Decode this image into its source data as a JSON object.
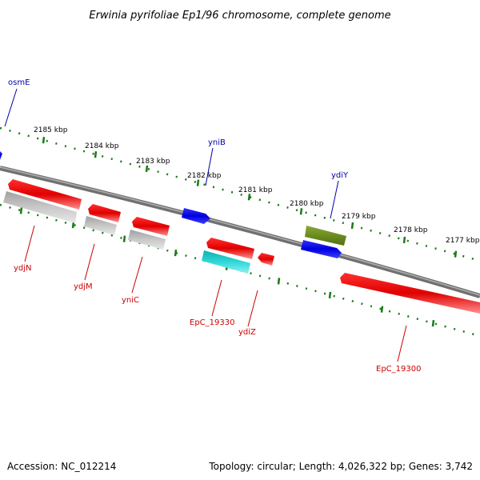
{
  "title": "Erwinia pyrifoliae Ep1/96 chromosome, complete genome",
  "footer": {
    "accession": "Accession: NC_012214",
    "summary": "Topology: circular; Length: 4,026,322 bp; Genes: 3,742"
  },
  "ruler": {
    "color": "#1a7a1a",
    "labels": [
      "2185 kbp",
      "2184 kbp",
      "2183 kbp",
      "2182 kbp",
      "2181 kbp",
      "2180 kbp",
      "2179 kbp",
      "2178 kbp",
      "2177 kbp"
    ]
  },
  "colors": {
    "backbone": "#808080",
    "gene_red": "#e00000",
    "gene_grey": "#b8b8b8",
    "gene_blue": "#0000dd",
    "gene_olive": "#6b8c1e",
    "gene_cyan": "#20c8c8",
    "label_red": "#cc0000",
    "label_blue": "#0000aa"
  },
  "labels_top": [
    "osmE",
    "yniB",
    "ydiY"
  ],
  "labels_bottom": [
    "ydjN",
    "ydjM",
    "yniC",
    "EpC_19330",
    "ydiZ",
    "EpC_19300"
  ]
}
